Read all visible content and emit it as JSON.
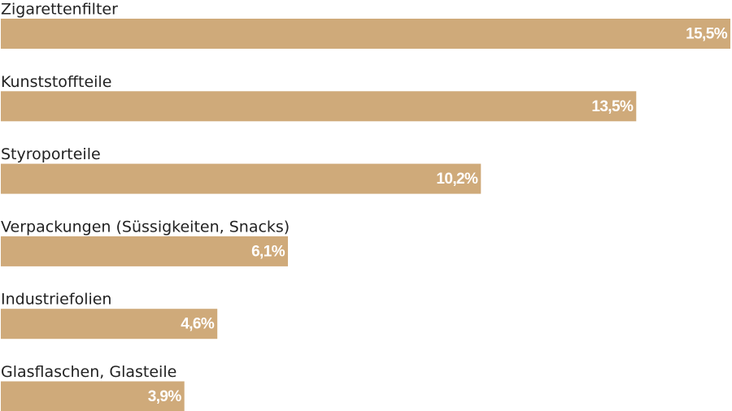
{
  "chart_data": {
    "type": "bar",
    "orientation": "horizontal",
    "categories": [
      "Zigarettenfilter",
      "Kunststoffteile",
      "Styroporteile",
      "Verpackungen (Süssigkeiten, Snacks)",
      "Industriefolien",
      "Glasflaschen, Glasteile"
    ],
    "values": [
      15.5,
      13.5,
      10.2,
      6.1,
      4.6,
      3.9
    ],
    "value_labels": [
      "15,5%",
      "13,5%",
      "10,2%",
      "6,1%",
      "4,6%",
      "3,9%"
    ],
    "color": "#cfaa7a"
  }
}
